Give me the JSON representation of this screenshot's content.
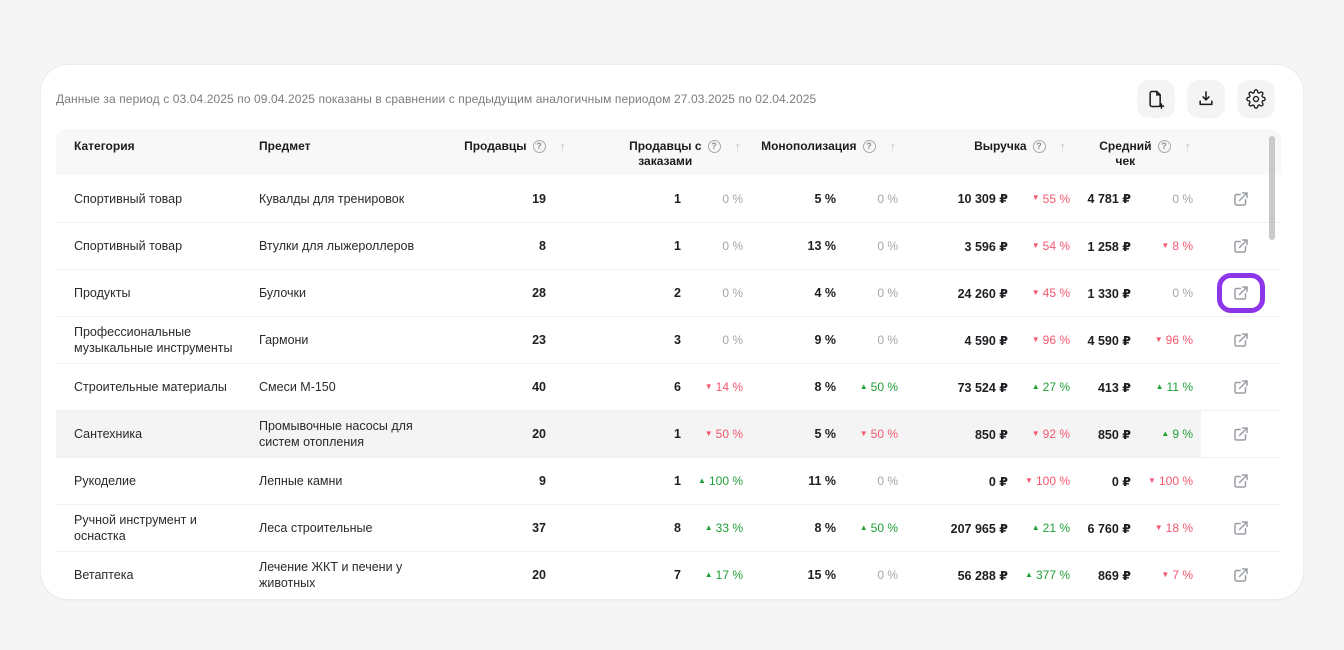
{
  "colors": {
    "up": "#21a038",
    "down": "#f4566e",
    "neutral": "#a5a5a9",
    "highlight_ring": "#8d35e8"
  },
  "icons": {
    "help": "?",
    "sort_asc": "↑",
    "up_triangle": "▲",
    "down_triangle": "▼"
  },
  "toolbar": {
    "period_text": "Данные за период с 03.04.2025 по 09.04.2025 показаны в сравнении с предыдущим аналогичным периодом 27.03.2025 по 02.04.2025",
    "buttons": [
      {
        "name": "export-report",
        "icon": "file-plus-icon"
      },
      {
        "name": "download",
        "icon": "download-icon"
      },
      {
        "name": "settings",
        "icon": "gear-icon"
      }
    ]
  },
  "table": {
    "columns": [
      {
        "label": "Категория"
      },
      {
        "label": "Предмет"
      },
      {
        "label": "Продавцы",
        "help": true,
        "sortable": true
      },
      {
        "label_line1": "Продавцы с",
        "label_line2": "заказами",
        "help": true,
        "sortable": true
      },
      {
        "label": "Монополизация",
        "help": true,
        "sortable": true
      },
      {
        "label": "Выручка",
        "help": true,
        "sortable": true
      },
      {
        "label_line1": "Средний",
        "label_line2": "чек",
        "help": true,
        "sortable": true
      }
    ],
    "rows": [
      {
        "category": "Спортивный товар",
        "subject": "Кувалды для тренировок",
        "sellers": "19",
        "sellers_with_orders": {
          "value": "1",
          "dir": "none",
          "change": "0 %"
        },
        "monopolization": {
          "value": "5 %",
          "dir": "none",
          "change": "0 %"
        },
        "revenue": {
          "value": "10 309 ₽",
          "dir": "down",
          "change": "55 %"
        },
        "avg_check": {
          "value": "4 781 ₽",
          "dir": "none",
          "change": "0 %"
        }
      },
      {
        "category": "Спортивный товар",
        "subject": "Втулки для лыжероллеров",
        "sellers": "8",
        "sellers_with_orders": {
          "value": "1",
          "dir": "none",
          "change": "0 %"
        },
        "monopolization": {
          "value": "13 %",
          "dir": "none",
          "change": "0 %"
        },
        "revenue": {
          "value": "3 596 ₽",
          "dir": "down",
          "change": "54 %"
        },
        "avg_check": {
          "value": "1 258 ₽",
          "dir": "down",
          "change": "8 %"
        }
      },
      {
        "category": "Продукты",
        "subject": "Булочки",
        "sellers": "28",
        "sellers_with_orders": {
          "value": "2",
          "dir": "none",
          "change": "0 %"
        },
        "monopolization": {
          "value": "4 %",
          "dir": "none",
          "change": "0 %"
        },
        "revenue": {
          "value": "24 260 ₽",
          "dir": "down",
          "change": "45 %"
        },
        "avg_check": {
          "value": "1 330 ₽",
          "dir": "none",
          "change": "0 %"
        },
        "icon_highlighted": true
      },
      {
        "category": "Профессиональные музыкальные инструменты",
        "subject": "Гармони",
        "sellers": "23",
        "sellers_with_orders": {
          "value": "3",
          "dir": "none",
          "change": "0 %"
        },
        "monopolization": {
          "value": "9 %",
          "dir": "none",
          "change": "0 %"
        },
        "revenue": {
          "value": "4 590 ₽",
          "dir": "down",
          "change": "96 %"
        },
        "avg_check": {
          "value": "4 590 ₽",
          "dir": "down",
          "change": "96 %"
        }
      },
      {
        "category": "Строительные материалы",
        "subject": "Смеси М-150",
        "sellers": "40",
        "sellers_with_orders": {
          "value": "6",
          "dir": "down",
          "change": "14 %"
        },
        "monopolization": {
          "value": "8 %",
          "dir": "up",
          "change": "50 %"
        },
        "revenue": {
          "value": "73 524 ₽",
          "dir": "up",
          "change": "27 %"
        },
        "avg_check": {
          "value": "413 ₽",
          "dir": "up",
          "change": "11 %"
        }
      },
      {
        "category": "Сантехника",
        "subject": "Промывочные насосы для систем отопления",
        "sellers": "20",
        "sellers_with_orders": {
          "value": "1",
          "dir": "down",
          "change": "50 %"
        },
        "monopolization": {
          "value": "5 %",
          "dir": "down",
          "change": "50 %"
        },
        "revenue": {
          "value": "850 ₽",
          "dir": "down",
          "change": "92 %"
        },
        "avg_check": {
          "value": "850 ₽",
          "dir": "up",
          "change": "9 %"
        },
        "row_highlighted": true
      },
      {
        "category": "Рукоделие",
        "subject": "Лепные камни",
        "sellers": "9",
        "sellers_with_orders": {
          "value": "1",
          "dir": "up",
          "change": "100 %"
        },
        "monopolization": {
          "value": "11 %",
          "dir": "none",
          "change": "0 %"
        },
        "revenue": {
          "value": "0 ₽",
          "dir": "down",
          "change": "100 %"
        },
        "avg_check": {
          "value": "0 ₽",
          "dir": "down",
          "change": "100 %"
        }
      },
      {
        "category": "Ручной инструмент и оснастка",
        "subject": "Леса строительные",
        "sellers": "37",
        "sellers_with_orders": {
          "value": "8",
          "dir": "up",
          "change": "33 %"
        },
        "monopolization": {
          "value": "8 %",
          "dir": "up",
          "change": "50 %"
        },
        "revenue": {
          "value": "207 965 ₽",
          "dir": "up",
          "change": "21 %"
        },
        "avg_check": {
          "value": "6 760 ₽",
          "dir": "down",
          "change": "18 %"
        }
      },
      {
        "category": "Ветаптека",
        "subject": "Лечение ЖКТ и печени у животных",
        "sellers": "20",
        "sellers_with_orders": {
          "value": "7",
          "dir": "up",
          "change": "17 %"
        },
        "monopolization": {
          "value": "15 %",
          "dir": "none",
          "change": "0 %"
        },
        "revenue": {
          "value": "56 288 ₽",
          "dir": "up",
          "change": "377 %"
        },
        "avg_check": {
          "value": "869 ₽",
          "dir": "down",
          "change": "7 %"
        }
      }
    ]
  }
}
